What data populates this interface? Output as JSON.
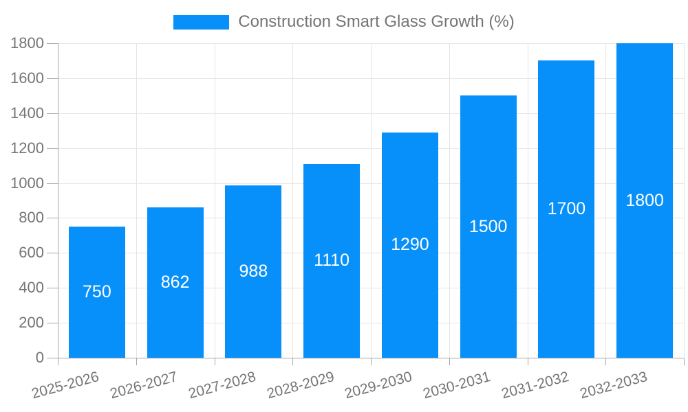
{
  "chart_data": {
    "type": "bar",
    "title": "Construction Smart Glass Growth (%)",
    "categories": [
      "2025-2026",
      "2026-2027",
      "2027-2028",
      "2028-2029",
      "2029-2030",
      "2030-2031",
      "2031-2032",
      "2032-2033"
    ],
    "values": [
      750,
      862,
      988,
      1110,
      1290,
      1500,
      1700,
      1800
    ],
    "xlabel": "",
    "ylabel": "",
    "ylim": [
      0,
      1800
    ],
    "ytick_step": 200,
    "yticks": [
      0,
      200,
      400,
      600,
      800,
      1000,
      1200,
      1400,
      1600,
      1800
    ],
    "grid": true,
    "legend_position": "top",
    "value_labels": "inside-center"
  },
  "colors": {
    "bar": "#0890FA",
    "tick_label": "#757575",
    "legend_text": "#757575",
    "value_label": "#FFFFFF",
    "axis_line": "#A6A6A6",
    "gridline": "#E4E4E4",
    "background": "#FFFFFF"
  }
}
